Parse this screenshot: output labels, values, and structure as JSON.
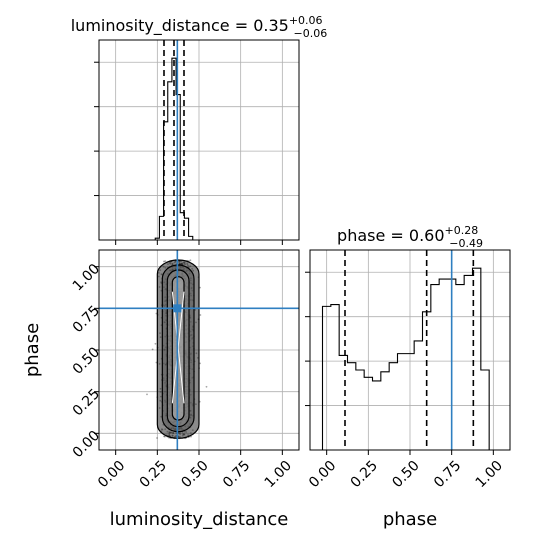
{
  "chart_data": [
    {
      "type": "histogram",
      "panel": "luminosity_distance-1d",
      "title": {
        "param": "luminosity_distance",
        "value": "0.35",
        "plus": "+0.06",
        "minus": "−0.06"
      },
      "xlim": [
        -0.1,
        1.1
      ],
      "x": [
        0.225,
        0.25,
        0.275,
        0.3,
        0.325,
        0.35,
        0.375,
        0.4,
        0.425,
        0.45,
        0.475,
        0.5
      ],
      "values": [
        0.0,
        0.01,
        0.13,
        0.65,
        0.87,
        1.0,
        0.8,
        0.15,
        0.12,
        0.02,
        0.0,
        0.0
      ],
      "quantiles": [
        0.29,
        0.35,
        0.41
      ],
      "truth": 0.37
    },
    {
      "type": "scatter",
      "panel": "luminosity_distance-vs-phase-2d",
      "xlabel": "luminosity_distance",
      "ylabel": "phase",
      "xlim": [
        -0.1,
        1.1
      ],
      "ylim": [
        -0.1,
        1.1
      ],
      "xticks": [
        "0.00",
        "0.25",
        "0.50",
        "0.75",
        "1.00"
      ],
      "yticks": [
        "0.00",
        "0.25",
        "0.50",
        "0.75",
        "1.00"
      ],
      "truth": {
        "x": 0.37,
        "y": 0.75
      },
      "contours": {
        "outer": {
          "x": [
            0.25,
            0.5
          ],
          "y": [
            -0.03,
            1.04
          ]
        },
        "middle": {
          "x": [
            0.28,
            0.47
          ],
          "y": [
            0.01,
            1.01
          ]
        },
        "inner": {
          "x": [
            0.31,
            0.44
          ],
          "y": [
            0.04,
            0.98
          ]
        },
        "core": {
          "x": [
            0.34,
            0.41
          ],
          "y": [
            0.08,
            0.94
          ]
        }
      }
    },
    {
      "type": "histogram",
      "panel": "phase-1d",
      "title": {
        "param": "phase",
        "value": "0.60",
        "plus": "+0.28",
        "minus": "−0.49"
      },
      "xlabel": "phase",
      "xlim": [
        -0.1,
        1.1
      ],
      "xticks": [
        "0.00",
        "0.25",
        "0.50",
        "0.75",
        "1.00"
      ],
      "x": [
        -0.05,
        0.0,
        0.05,
        0.1,
        0.15,
        0.2,
        0.25,
        0.3,
        0.35,
        0.4,
        0.45,
        0.5,
        0.55,
        0.6,
        0.65,
        0.7,
        0.75,
        0.8,
        0.85,
        0.9,
        0.95,
        1.0,
        1.05
      ],
      "values": [
        0.0,
        0.79,
        0.8,
        0.52,
        0.48,
        0.44,
        0.4,
        0.38,
        0.43,
        0.48,
        0.53,
        0.53,
        0.6,
        0.76,
        0.91,
        0.94,
        0.94,
        0.91,
        0.96,
        1.0,
        0.44,
        0.0,
        0.0
      ],
      "quantiles": [
        0.11,
        0.6,
        0.88
      ],
      "truth": 0.75
    }
  ]
}
